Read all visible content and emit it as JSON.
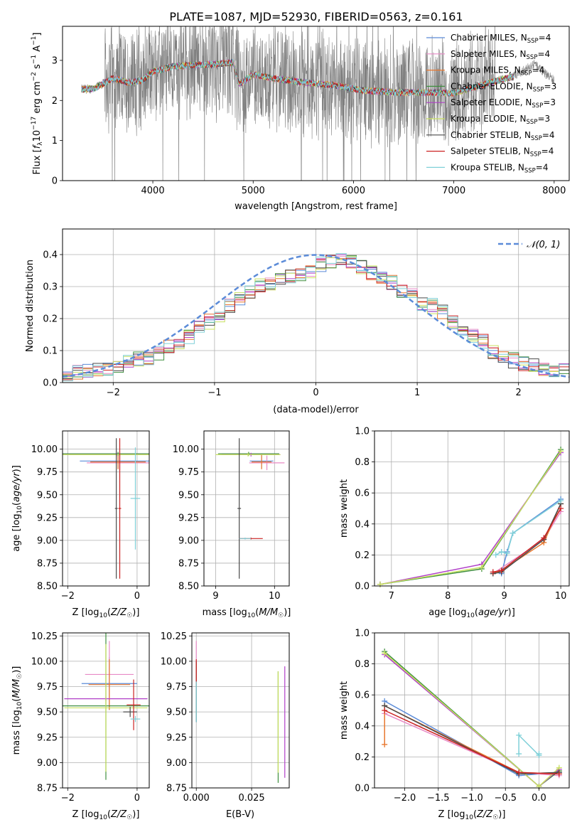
{
  "figure_title": "PLATE=1087, MJD=52930, FIBERID=0563, z=0.161",
  "colors": {
    "Chabrier MILES": "#5b8bd8",
    "Salpeter MILES": "#e88ac6",
    "Kroupa MILES": "#e8772e",
    "Chabrier ELODIE": "#3f8f3f",
    "Salpeter ELODIE": "#b03fc8",
    "Kroupa ELODIE": "#c8e060",
    "Chabrier STELIB": "#4a4a4a",
    "Salpeter STELIB": "#cc2222",
    "Kroupa STELIB": "#7fd0d8",
    "data": "#808080",
    "normal": "#5b8bd8"
  },
  "chart_data": [
    {
      "id": "spectrum",
      "type": "line",
      "xlabel": "wavelength [Angstrom, rest frame]",
      "ylabel": "Flux [f_λ 10^-17 erg cm^-2 s^-1 A^-1]",
      "xlim": [
        3100,
        8150
      ],
      "ylim": [
        0,
        3.85
      ],
      "xticks": [
        4000,
        5000,
        6000,
        7000,
        8000
      ],
      "yticks": [
        0,
        1,
        2,
        3
      ],
      "legend_location": "upper right",
      "legend": [
        {
          "label": "Chabrier MILES, N_SSP=4",
          "base": "Chabrier MILES, N",
          "sub": "SSP",
          "tail": "=4"
        },
        {
          "label": "Salpeter MILES, N_SSP=4",
          "base": "Salpeter MILES, N",
          "sub": "SSP",
          "tail": "=4"
        },
        {
          "label": "Kroupa MILES, N_SSP=4",
          "base": "Kroupa MILES, N",
          "sub": "SSP",
          "tail": "=4"
        },
        {
          "label": "Chabrier ELODIE, N_SSP=3",
          "base": "Chabrier ELODIE, N",
          "sub": "SSP",
          "tail": "=3"
        },
        {
          "label": "Salpeter ELODIE, N_SSP=3",
          "base": "Salpeter ELODIE, N",
          "sub": "SSP",
          "tail": "=3"
        },
        {
          "label": "Kroupa ELODIE, N_SSP=3",
          "base": "Kroupa ELODIE, N",
          "sub": "SSP",
          "tail": "=3"
        },
        {
          "label": "Chabrier STELIB, N_SSP=4",
          "base": "Chabrier STELIB, N",
          "sub": "SSP",
          "tail": "=4"
        },
        {
          "label": "Salpeter STELIB, N_SSP=4",
          "base": "Salpeter STELIB, N",
          "sub": "SSP",
          "tail": "=4"
        },
        {
          "label": "Kroupa STELIB, N_SSP=4",
          "base": "Kroupa STELIB, N",
          "sub": "SSP",
          "tail": "=4"
        }
      ],
      "data_range": [
        3290,
        8000
      ],
      "continuum_knots": {
        "x": [
          3290,
          3420,
          3600,
          3750,
          3900,
          4000,
          4200,
          4400,
          4600,
          4800,
          4860,
          5000,
          5200,
          5500,
          5800,
          6100,
          6400,
          6700,
          7000,
          7300,
          7600,
          7800,
          8000
        ],
        "y": [
          2.28,
          2.3,
          2.55,
          2.45,
          2.5,
          2.72,
          2.85,
          2.88,
          2.9,
          2.95,
          2.4,
          2.65,
          2.55,
          2.45,
          2.38,
          2.25,
          2.2,
          2.2,
          2.18,
          2.4,
          2.6,
          2.9,
          2.5
        ]
      }
    },
    {
      "id": "residuals",
      "type": "histogram",
      "xlabel": "(data-model)/error",
      "ylabel": "Normed distribution",
      "xlim": [
        -2.5,
        2.5
      ],
      "ylim": [
        0,
        0.48
      ],
      "xticks": [
        -2,
        -1,
        0,
        1,
        2
      ],
      "yticks": [
        0.0,
        0.1,
        0.2,
        0.3,
        0.4
      ],
      "grid": true,
      "legend_location": "upper right",
      "normal_label": "𝒩(0, 1)",
      "bin_width": 0.1,
      "bin_start": -2.5,
      "base_values": [
        0.03,
        0.035,
        0.04,
        0.04,
        0.045,
        0.05,
        0.06,
        0.075,
        0.08,
        0.09,
        0.11,
        0.13,
        0.14,
        0.17,
        0.19,
        0.21,
        0.24,
        0.26,
        0.28,
        0.3,
        0.31,
        0.33,
        0.33,
        0.34,
        0.35,
        0.37,
        0.38,
        0.39,
        0.38,
        0.36,
        0.34,
        0.33,
        0.31,
        0.29,
        0.27,
        0.25,
        0.24,
        0.22,
        0.19,
        0.17,
        0.15,
        0.13,
        0.1,
        0.085,
        0.07,
        0.06,
        0.05,
        0.04,
        0.04,
        0.035
      ]
    },
    {
      "id": "age-vs-Z",
      "type": "errorbar",
      "xlabel": "Z [log10(Z/Z☉)]",
      "ylabel": "age [log10(age/yr)]",
      "xlim": [
        -2.15,
        0.35
      ],
      "ylim": [
        8.5,
        10.2
      ],
      "xticks": [
        -2,
        0
      ],
      "yticks": [
        8.5,
        8.75,
        9.0,
        9.25,
        9.5,
        9.75,
        10.0
      ],
      "grid": true,
      "points": [
        {
          "model": "Chabrier MILES",
          "x": -0.55,
          "y": 9.87,
          "xerr": 1.1,
          "yerr": 0.08
        },
        {
          "model": "Salpeter MILES",
          "x": -0.5,
          "y": 9.85,
          "xerr": 0.95,
          "yerr": 0.08
        },
        {
          "model": "Kroupa MILES",
          "x": -0.55,
          "y": 9.86,
          "xerr": 0.8,
          "yerr": 0.08
        },
        {
          "model": "Chabrier ELODIE",
          "x": -0.55,
          "y": 9.95,
          "xerr": 2.25,
          "yerr": 0.02
        },
        {
          "model": "Salpeter ELODIE",
          "x": -0.6,
          "y": 9.94,
          "xerr": 2.3,
          "yerr": 0.02
        },
        {
          "model": "Kroupa ELODIE",
          "x": -0.5,
          "y": 9.94,
          "xerr": 2.3,
          "yerr": 0.02
        },
        {
          "model": "Chabrier STELIB",
          "x": -0.6,
          "y": 9.35,
          "xerr": 0.04,
          "yerr": 0.77
        },
        {
          "model": "Salpeter STELIB",
          "x": -0.5,
          "y": 9.35,
          "xerr": 0.04,
          "yerr": 0.77
        },
        {
          "model": "Kroupa STELIB",
          "x": -0.05,
          "y": 9.46,
          "xerr": 0.14,
          "yerr": 0.56
        }
      ]
    },
    {
      "id": "age-vs-mass",
      "type": "errorbar",
      "xlabel": "mass [log10(M/M☉)]",
      "ylabel": "",
      "xlim": [
        8.8,
        10.25
      ],
      "ylim": [
        8.5,
        10.2
      ],
      "xticks": [
        9,
        10
      ],
      "yticks": [
        8.5,
        8.75,
        9.0,
        9.25,
        9.5,
        9.75,
        10.0
      ],
      "grid": true,
      "points": [
        {
          "model": "Chabrier MILES",
          "x": 9.78,
          "y": 9.87,
          "xerr": 0.2,
          "yerr": 0.08
        },
        {
          "model": "Salpeter MILES",
          "x": 9.87,
          "y": 9.85,
          "xerr": 0.3,
          "yerr": 0.08
        },
        {
          "model": "Kroupa MILES",
          "x": 9.78,
          "y": 9.86,
          "xerr": 0.17,
          "yerr": 0.08
        },
        {
          "model": "Chabrier ELODIE",
          "x": 9.56,
          "y": 9.95,
          "xerr": 0.52,
          "yerr": 0.02
        },
        {
          "model": "Salpeter ELODIE",
          "x": 9.6,
          "y": 9.94,
          "xerr": 0.5,
          "yerr": 0.02
        },
        {
          "model": "Kroupa ELODIE",
          "x": 9.55,
          "y": 9.94,
          "xerr": 0.55,
          "yerr": 0.02
        },
        {
          "model": "Chabrier STELIB",
          "x": 9.4,
          "y": 9.35,
          "xerr": 0.03,
          "yerr": 0.77
        },
        {
          "model": "Salpeter STELIB",
          "x": 9.6,
          "y": 9.02,
          "xerr": 0.2,
          "yerr": 0.01
        },
        {
          "model": "Kroupa STELIB",
          "x": 9.5,
          "y": 9.02,
          "xerr": 0.1,
          "yerr": 0.01
        }
      ]
    },
    {
      "id": "massweight-vs-age",
      "type": "line",
      "xlabel": "age [log10(age/yr)]",
      "ylabel": "mass weight",
      "xlim": [
        6.7,
        10.15
      ],
      "ylim": [
        0,
        1.0
      ],
      "xticks": [
        7,
        8,
        9,
        10
      ],
      "yticks": [
        0.0,
        0.2,
        0.4,
        0.6,
        0.8,
        1.0
      ],
      "grid": true,
      "series": [
        {
          "model": "Chabrier MILES",
          "x": [
            8.95,
            9.05,
            9.15,
            10.0
          ],
          "y": [
            0.08,
            0.22,
            0.34,
            0.56
          ]
        },
        {
          "model": "Salpeter MILES",
          "x": [
            8.8,
            9.7,
            10.0
          ],
          "y": [
            0.08,
            0.3,
            0.48
          ]
        },
        {
          "model": "Kroupa MILES",
          "x": [
            8.8,
            8.95,
            9.7,
            10.0
          ],
          "y": [
            0.08,
            0.1,
            0.28,
            0.53
          ]
        },
        {
          "model": "Chabrier ELODIE",
          "x": [
            6.8,
            8.6,
            10.0
          ],
          "y": [
            0.01,
            0.11,
            0.88
          ]
        },
        {
          "model": "Salpeter ELODIE",
          "x": [
            6.8,
            8.6,
            10.0
          ],
          "y": [
            0.01,
            0.14,
            0.86
          ]
        },
        {
          "model": "Kroupa ELODIE",
          "x": [
            6.8,
            8.6,
            10.0
          ],
          "y": [
            0.01,
            0.12,
            0.87
          ]
        },
        {
          "model": "Chabrier STELIB",
          "x": [
            8.8,
            8.95,
            9.7,
            10.0
          ],
          "y": [
            0.08,
            0.09,
            0.3,
            0.53
          ]
        },
        {
          "model": "Salpeter STELIB",
          "x": [
            8.8,
            8.95,
            9.7,
            10.0
          ],
          "y": [
            0.09,
            0.1,
            0.31,
            0.5
          ]
        },
        {
          "model": "Kroupa STELIB",
          "x": [
            8.85,
            8.95,
            9.05,
            9.15,
            10.0
          ],
          "y": [
            0.2,
            0.22,
            0.21,
            0.34,
            0.55
          ]
        }
      ]
    },
    {
      "id": "mass-vs-Z",
      "type": "errorbar",
      "xlabel": "Z [log10(Z/Z☉)]",
      "ylabel": "mass [log10(M/M☉)]",
      "xlim": [
        -2.15,
        0.35
      ],
      "ylim": [
        8.75,
        10.28
      ],
      "xticks": [
        -2,
        0
      ],
      "yticks": [
        8.75,
        9.0,
        9.25,
        9.5,
        9.75,
        10.0,
        10.25
      ],
      "grid": true,
      "points": [
        {
          "model": "Chabrier MILES",
          "x": -0.8,
          "y": 9.78,
          "xerr": 0.8,
          "yerr": 0.26
        },
        {
          "model": "Salpeter MILES",
          "x": -0.8,
          "y": 9.87,
          "xerr": 0.7,
          "yerr": 0.33
        },
        {
          "model": "Kroupa MILES",
          "x": -0.8,
          "y": 9.77,
          "xerr": 0.6,
          "yerr": 0.25
        },
        {
          "model": "Chabrier ELODIE",
          "x": -0.9,
          "y": 9.56,
          "xerr": 1.25,
          "yerr": 0.73
        },
        {
          "model": "Salpeter ELODIE",
          "x": -0.9,
          "y": 9.63,
          "xerr": 1.2,
          "yerr": 0.02
        },
        {
          "model": "Kroupa ELODIE",
          "x": -0.9,
          "y": 9.54,
          "xerr": 1.2,
          "yerr": 0.63
        },
        {
          "model": "Chabrier STELIB",
          "x": -0.2,
          "y": 9.5,
          "xerr": 0.2,
          "yerr": 0.05
        },
        {
          "model": "Salpeter STELIB",
          "x": -0.1,
          "y": 9.57,
          "xerr": 0.2,
          "yerr": 0.25
        },
        {
          "model": "Kroupa STELIB",
          "x": -0.05,
          "y": 9.43,
          "xerr": 0.14,
          "yerr": 0.03
        }
      ]
    },
    {
      "id": "mass-vs-EBV",
      "type": "errorbar",
      "xlabel": "E(B-V)",
      "ylabel": "",
      "xlim": [
        -0.002,
        0.042
      ],
      "ylim": [
        8.75,
        10.28
      ],
      "xticks": [
        0.0,
        0.025
      ],
      "yticks": [
        8.75,
        9.0,
        9.25,
        9.5,
        9.75,
        10.0,
        10.25
      ],
      "grid": true,
      "points": [
        {
          "model": "Chabrier MILES",
          "x": 0.0,
          "y": 9.7,
          "xerr": 0,
          "yerr": 0.3
        },
        {
          "model": "Salpeter MILES",
          "x": 0.0,
          "y": 9.9,
          "xerr": 0,
          "yerr": 0.3
        },
        {
          "model": "Kroupa MILES",
          "x": 0.0,
          "y": 9.7,
          "xerr": 0,
          "yerr": 0.28
        },
        {
          "model": "Chabrier ELODIE",
          "x": 0.037,
          "y": 9.35,
          "xerr": 0,
          "yerr": 0.55
        },
        {
          "model": "Salpeter ELODIE",
          "x": 0.04,
          "y": 9.4,
          "xerr": 0,
          "yerr": 0.55
        },
        {
          "model": "Kroupa ELODIE",
          "x": 0.037,
          "y": 9.4,
          "xerr": 0,
          "yerr": 0.5
        },
        {
          "model": "Chabrier STELIB",
          "x": 0.0,
          "y": 9.7,
          "xerr": 0,
          "yerr": 0.3
        },
        {
          "model": "Salpeter STELIB",
          "x": 0.0,
          "y": 9.9,
          "xerr": 0,
          "yerr": 0.12
        },
        {
          "model": "Kroupa STELIB",
          "x": 0.0,
          "y": 9.6,
          "xerr": 0,
          "yerr": 0.2
        }
      ]
    },
    {
      "id": "massweight-vs-Z",
      "type": "line",
      "xlabel": "Z [log10(Z/Z☉)]",
      "ylabel": "mass weight",
      "xlim": [
        -2.45,
        0.45
      ],
      "ylim": [
        0,
        1.0
      ],
      "xticks": [
        -2.0,
        -1.5,
        -1.0,
        -0.5,
        0.0
      ],
      "yticks": [
        0.0,
        0.2,
        0.4,
        0.6,
        0.8,
        1.0
      ],
      "grid": true,
      "series": [
        {
          "model": "Chabrier MILES",
          "x": [
            -2.3,
            -0.3,
            0.3
          ],
          "y": [
            0.56,
            0.08,
            0.1
          ]
        },
        {
          "model": "Salpeter MILES",
          "x": [
            -2.3,
            -0.3,
            0.3
          ],
          "y": [
            0.48,
            0.1,
            0.08
          ]
        },
        {
          "model": "Kroupa MILES",
          "x": [
            -2.3,
            -2.3,
            -0.3,
            0.3
          ],
          "y": [
            0.28,
            0.53,
            0.1,
            0.09
          ]
        },
        {
          "model": "Chabrier ELODIE",
          "x": [
            -2.3,
            0.0,
            0.3
          ],
          "y": [
            0.88,
            0.01,
            0.11
          ]
        },
        {
          "model": "Salpeter ELODIE",
          "x": [
            -2.3,
            0.0,
            0.3
          ],
          "y": [
            0.86,
            0.01,
            0.12
          ]
        },
        {
          "model": "Kroupa ELODIE",
          "x": [
            -2.3,
            0.0,
            0.3
          ],
          "y": [
            0.87,
            0.01,
            0.13
          ]
        },
        {
          "model": "Chabrier STELIB",
          "x": [
            -2.3,
            -0.3,
            0.3
          ],
          "y": [
            0.53,
            0.09,
            0.1
          ]
        },
        {
          "model": "Salpeter STELIB",
          "x": [
            -2.3,
            -0.3,
            0.3
          ],
          "y": [
            0.5,
            0.1,
            0.09
          ]
        },
        {
          "model": "Kroupa STELIB",
          "x": [
            -0.3,
            -0.3,
            0.0,
            0.0
          ],
          "y": [
            0.22,
            0.34,
            0.21,
            0.22
          ]
        }
      ]
    }
  ]
}
